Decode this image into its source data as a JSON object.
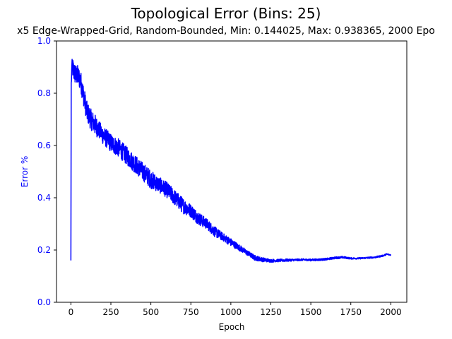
{
  "chart_data": {
    "type": "line",
    "title": "Topological Error (Bins: 25)",
    "subtitle": "x5 Edge-Wrapped-Grid, Random-Bounded, Min: 0.144025, Max: 0.938365, 2000 Epo",
    "xlabel": "Epoch",
    "ylabel": "Error %",
    "xlim": [
      -90,
      2100
    ],
    "ylim": [
      0.0,
      1.0
    ],
    "xticks": [
      "0",
      "250",
      "500",
      "750",
      "1000",
      "1250",
      "1500",
      "1750",
      "2000"
    ],
    "yticks": [
      "0.0",
      "0.2",
      "0.4",
      "0.6",
      "0.8",
      "1.0"
    ],
    "grid": false,
    "colors": {
      "series": "#0000ff",
      "ytick_labels": "#0000ff",
      "ylabel": "#0000ff",
      "axes": "#000000"
    },
    "series": [
      {
        "x": [
          0,
          2,
          5,
          10,
          20,
          30,
          40,
          50,
          60,
          70,
          80,
          90,
          100,
          125,
          150,
          175,
          200,
          250,
          300,
          350,
          400,
          450,
          500,
          550,
          600,
          650,
          700,
          750,
          800,
          850,
          900,
          950,
          1000,
          1050,
          1100,
          1150,
          1200,
          1250,
          1300,
          1350,
          1400,
          1450,
          1500,
          1550,
          1600,
          1650,
          1700,
          1750,
          1800,
          1850,
          1900,
          1950,
          1975,
          2000
        ],
        "values": [
          0.16,
          0.84,
          0.88,
          0.9,
          0.88,
          0.87,
          0.87,
          0.86,
          0.85,
          0.82,
          0.79,
          0.76,
          0.73,
          0.7,
          0.68,
          0.66,
          0.64,
          0.61,
          0.59,
          0.56,
          0.53,
          0.5,
          0.47,
          0.45,
          0.43,
          0.4,
          0.37,
          0.35,
          0.32,
          0.3,
          0.27,
          0.25,
          0.23,
          0.21,
          0.19,
          0.17,
          0.163,
          0.159,
          0.16,
          0.161,
          0.162,
          0.163,
          0.162,
          0.163,
          0.165,
          0.17,
          0.172,
          0.168,
          0.168,
          0.17,
          0.172,
          0.178,
          0.184,
          0.181
        ],
        "noise": [
          0,
          0.03,
          0.04,
          0.04,
          0.04,
          0.04,
          0.04,
          0.04,
          0.04,
          0.04,
          0.04,
          0.04,
          0.04,
          0.04,
          0.04,
          0.035,
          0.035,
          0.035,
          0.035,
          0.035,
          0.035,
          0.035,
          0.035,
          0.03,
          0.03,
          0.03,
          0.03,
          0.025,
          0.025,
          0.02,
          0.02,
          0.015,
          0.015,
          0.012,
          0.01,
          0.01,
          0.008,
          0.006,
          0.005,
          0.005,
          0.004,
          0.004,
          0.004,
          0.004,
          0.004,
          0.004,
          0.004,
          0.003,
          0.003,
          0.003,
          0.003,
          0.003,
          0.003,
          0.002
        ]
      }
    ]
  }
}
